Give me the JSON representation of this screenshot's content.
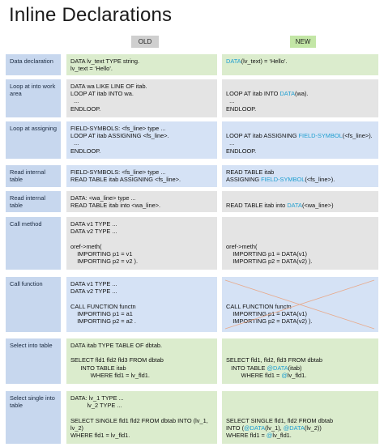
{
  "title": "Inline Declarations",
  "headers": {
    "old": "OLD",
    "new": "NEW"
  },
  "colors": {
    "label_bg": "#c7d7ee",
    "green_bg": "#dbeccd",
    "blue_bg": "#d5e2f5",
    "gray_bg": "#e4e4e4",
    "keyword": "#1f9fd0",
    "cross": "#e8a98a"
  },
  "rows": [
    {
      "label": "Data declaration",
      "color": "green",
      "old": [
        [
          {
            "t": "DATA lv_text TYPE string."
          }
        ],
        [
          {
            "t": "lv_text = ‘Hello’."
          }
        ]
      ],
      "new": [
        [
          {
            "t": "DATA",
            "k": true
          },
          {
            "t": "(lv_text) = ‘Hello’."
          }
        ]
      ]
    },
    {
      "label": "Loop at into work area",
      "color": "gray",
      "old": [
        [
          {
            "t": "DATA wa LIKE LINE OF itab."
          }
        ],
        [
          {
            "t": "LOOP AT itab INTO wa."
          }
        ],
        [
          {
            "t": "  ..."
          }
        ],
        [
          {
            "t": "ENDLOOP."
          }
        ]
      ],
      "new": [
        [
          {
            "t": ""
          }
        ],
        [
          {
            "t": "LOOP AT itab INTO "
          },
          {
            "t": "DATA",
            "k": true
          },
          {
            "t": "(wa)."
          }
        ],
        [
          {
            "t": "  ..."
          }
        ],
        [
          {
            "t": "ENDLOOP."
          }
        ]
      ]
    },
    {
      "label": "Loop at assigning",
      "color": "blue",
      "old": [
        [
          {
            "t": "FIELD-SYMBOLS: <fs_line> type ..."
          }
        ],
        [
          {
            "t": "LOOP AT itab ASSIGNING <fs_line>."
          }
        ],
        [
          {
            "t": "  ..."
          }
        ],
        [
          {
            "t": "ENDLOOP."
          }
        ]
      ],
      "new": [
        [
          {
            "t": ""
          }
        ],
        [
          {
            "t": "LOOP AT itab ASSIGNING "
          },
          {
            "t": "FIELD-SYMBOL",
            "k": true
          },
          {
            "t": "(<fs_line>)."
          }
        ],
        [
          {
            "t": "  ..."
          }
        ],
        [
          {
            "t": "ENDLOOP."
          }
        ]
      ]
    },
    {
      "label": "Read internal table",
      "color": "blue",
      "old": [
        [
          {
            "t": "FIELD-SYMBOLS: <fs_line> type ..."
          }
        ],
        [
          {
            "t": "READ TABLE itab ASSIGNING <fs_line>."
          }
        ]
      ],
      "new": [
        [
          {
            "t": "READ TABLE itab"
          }
        ],
        [
          {
            "t": "ASSIGNING "
          },
          {
            "t": "FIELD-SYMBOL",
            "k": true
          },
          {
            "t": "(<fs_line>)."
          }
        ]
      ]
    },
    {
      "label": "Read internal table",
      "color": "gray",
      "old": [
        [
          {
            "t": "DATA: <wa_line> type ..."
          }
        ],
        [
          {
            "t": "READ TABLE itab into <wa_line>."
          }
        ]
      ],
      "new": [
        [
          {
            "t": ""
          }
        ],
        [
          {
            "t": "READ TABLE itab into "
          },
          {
            "t": "DATA",
            "k": true
          },
          {
            "t": "(<wa_line>)"
          }
        ]
      ]
    },
    {
      "label": "Call method",
      "color": "gray",
      "old": [
        [
          {
            "t": "DATA v1 TYPE ..."
          }
        ],
        [
          {
            "t": "DATA v2 TYPE ..."
          }
        ],
        [
          {
            "t": ""
          }
        ],
        [
          {
            "t": "oref->meth("
          }
        ],
        [
          {
            "t": "    IMPORTING p1 = v1"
          }
        ],
        [
          {
            "t": "    IMPORTING p2 = v2 )."
          }
        ]
      ],
      "new": [
        [
          {
            "t": ""
          }
        ],
        [
          {
            "t": ""
          }
        ],
        [
          {
            "t": ""
          }
        ],
        [
          {
            "t": "oref->meth("
          }
        ],
        [
          {
            "t": "    IMPORTING p1 = DATA(v1)"
          }
        ],
        [
          {
            "t": "    IMPORTING p2 = DATA(v2) )."
          }
        ]
      ]
    },
    {
      "label": "Call function",
      "color": "blue",
      "crossed": true,
      "old": [
        [
          {
            "t": "DATA v1 TYPE ..."
          }
        ],
        [
          {
            "t": "DATA v2 TYPE ..."
          }
        ],
        [
          {
            "t": ""
          }
        ],
        [
          {
            "t": "CALL FUNCTION functn"
          }
        ],
        [
          {
            "t": "    IMPORTING p1 = a1"
          }
        ],
        [
          {
            "t": "    IMPORTING p2 = a2 ."
          }
        ]
      ],
      "new": [
        [
          {
            "t": ""
          }
        ],
        [
          {
            "t": ""
          }
        ],
        [
          {
            "t": ""
          }
        ],
        [
          {
            "t": "CALL FUNCTION functn"
          }
        ],
        [
          {
            "t": "    IMPORTING p1 = DATA(v1)"
          }
        ],
        [
          {
            "t": "    IMPORTING p2 = DATA(v2) )."
          }
        ]
      ]
    },
    {
      "label": "Select into table",
      "color": "green",
      "old": [
        [
          {
            "t": "DATA itab TYPE TABLE OF dbtab."
          }
        ],
        [
          {
            "t": ""
          }
        ],
        [
          {
            "t": "SELECT fld1 fld2 fld3 FROM dbtab"
          }
        ],
        [
          {
            "t": "      INTO TABLE itab"
          }
        ],
        [
          {
            "t": "            WHERE fld1 = lv_fld1."
          }
        ]
      ],
      "new": [
        [
          {
            "t": ""
          }
        ],
        [
          {
            "t": ""
          }
        ],
        [
          {
            "t": "SELECT fld1, fld2, fld3 FROM dbtab"
          }
        ],
        [
          {
            "t": "   INTO TABLE "
          },
          {
            "t": "@DATA",
            "k": true
          },
          {
            "t": "(itab)"
          }
        ],
        [
          {
            "t": "         WHERE fld1 = "
          },
          {
            "t": "@",
            "k": true
          },
          {
            "t": "lv_fld1."
          }
        ]
      ]
    },
    {
      "label": "Select single into table",
      "color": "green",
      "old": [
        [
          {
            "t": "DATA: lv_1 TYPE ..."
          }
        ],
        [
          {
            "t": "          lv_2 TYPE ..."
          }
        ],
        [
          {
            "t": ""
          }
        ],
        [
          {
            "t": "SELECT SINGLE fld1 fld2 FROM dbtab INTO (lv_1,"
          }
        ],
        [
          {
            "t": "lv_2)"
          }
        ],
        [
          {
            "t": "WHERE fld1 = lv_fld1."
          }
        ]
      ],
      "new": [
        [
          {
            "t": ""
          }
        ],
        [
          {
            "t": ""
          }
        ],
        [
          {
            "t": ""
          }
        ],
        [
          {
            "t": "SELECT SINGLE fld1, fld2 FROM dbtab"
          }
        ],
        [
          {
            "t": "INTO ("
          },
          {
            "t": "@DATA",
            "k": true
          },
          {
            "t": "(lv_1), "
          },
          {
            "t": "@DATA",
            "k": true
          },
          {
            "t": "(lv_2))"
          }
        ],
        [
          {
            "t": "WHERE fld1 = "
          },
          {
            "t": "@",
            "k": true
          },
          {
            "t": "lv_fld1."
          }
        ]
      ]
    }
  ]
}
